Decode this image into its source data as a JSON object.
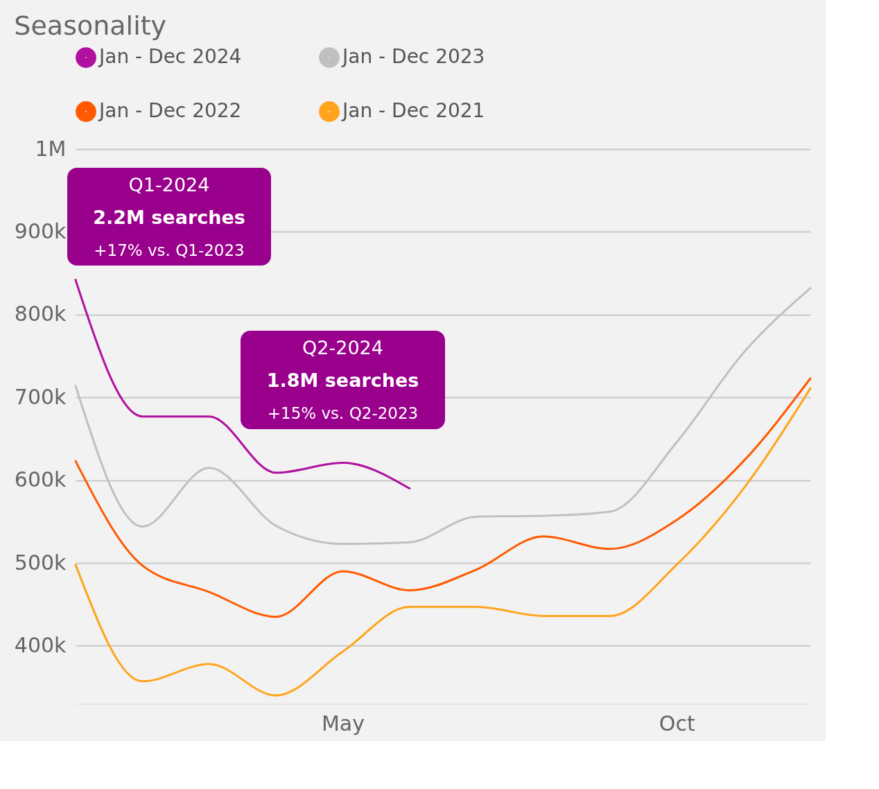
{
  "chart_data": {
    "type": "line",
    "title": "Seasonality",
    "categories": [
      null,
      null,
      null,
      null,
      "May",
      null,
      null,
      null,
      null,
      "Oct",
      null,
      null
    ],
    "ylim": [
      330000,
      1000000
    ],
    "yticks": [
      {
        "value": 400000,
        "label": "400k"
      },
      {
        "value": 500000,
        "label": "500k"
      },
      {
        "value": 600000,
        "label": "600k"
      },
      {
        "value": 700000,
        "label": "700k"
      },
      {
        "value": 800000,
        "label": "800k"
      },
      {
        "value": 900000,
        "label": "900k"
      },
      {
        "value": 1000000,
        "label": "1M"
      }
    ],
    "series": [
      {
        "name": "Jan - Dec 2024",
        "color": "#b0109f",
        "values": [
          842000,
          677000,
          677000,
          609000,
          621000,
          590000,
          null,
          null,
          null,
          null,
          null,
          null
        ]
      },
      {
        "name": "Jan - Dec 2023",
        "color": "#c0c0c0",
        "values": [
          714000,
          544000,
          615000,
          545000,
          523000,
          525000,
          556000,
          557000,
          562000,
          646000,
          754000,
          832000
        ]
      },
      {
        "name": "Jan - Dec 2022",
        "color": "#ff5a00",
        "values": [
          623000,
          497000,
          465000,
          435000,
          490000,
          467000,
          492000,
          532000,
          517000,
          552000,
          623000,
          723000
        ]
      },
      {
        "name": "Jan - Dec 2021",
        "color": "#ffa41c",
        "values": [
          498000,
          357000,
          378000,
          340000,
          393000,
          447000,
          447000,
          436000,
          436000,
          498000,
          590000,
          711000
        ]
      }
    ],
    "annotations": [
      "Q1-2024\n2.2M searches\n+17% vs. Q1-2023",
      "Q2-2024\n1.8M searches\n+15% vs. Q2-2023"
    ],
    "grid": "y",
    "legend": "top",
    "line_style": "solid"
  }
}
